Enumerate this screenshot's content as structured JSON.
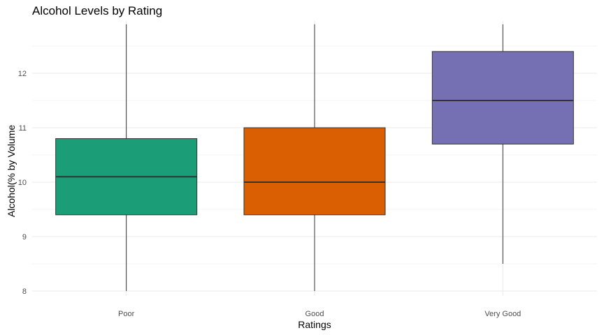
{
  "chart_data": {
    "type": "box",
    "title": "Alcohol Levels by Rating",
    "xlabel": "Ratings",
    "ylabel": "Alcohol(% by Volume",
    "categories": [
      "Poor",
      "Good",
      "Very Good"
    ],
    "colors": [
      "#1b9e77",
      "#d95f02",
      "#7570b3"
    ],
    "boxes": [
      {
        "category": "Poor",
        "min": 8.0,
        "q1": 9.4,
        "median": 10.1,
        "q3": 10.8,
        "max": 12.9
      },
      {
        "category": "Good",
        "min": 8.0,
        "q1": 9.4,
        "median": 10.0,
        "q3": 11.0,
        "max": 12.9
      },
      {
        "category": "Very Good",
        "min": 8.5,
        "q1": 10.7,
        "median": 11.5,
        "q3": 12.4,
        "max": 12.9
      }
    ],
    "y_ticks": [
      8,
      9,
      10,
      11,
      12
    ],
    "ylim": [
      7.95,
      12.95
    ],
    "grid": true,
    "legend": "none"
  }
}
